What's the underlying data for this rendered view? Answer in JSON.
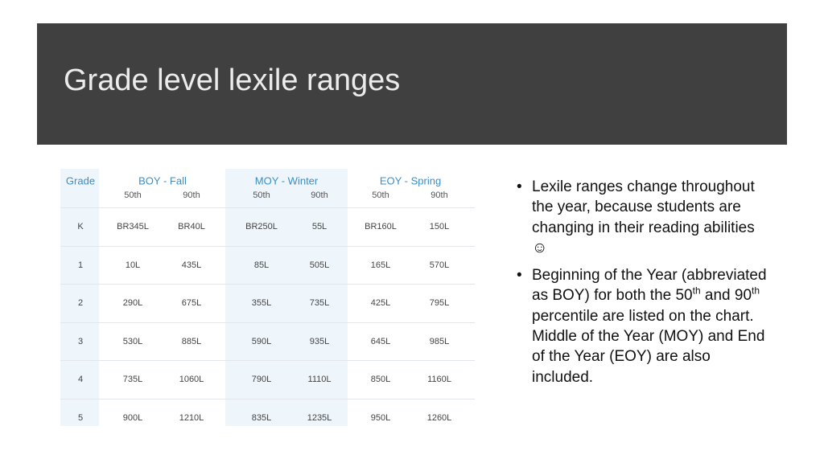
{
  "slide": {
    "title": "Grade level lexile ranges"
  },
  "table": {
    "header": [
      "Grade",
      "BOY - Fall",
      "MOY - Winter",
      "EOY - Spring"
    ],
    "subheader": [
      "50th",
      "90th",
      "50th",
      "90th",
      "50th",
      "90th"
    ],
    "rows": [
      [
        "K",
        "BR345L",
        "BR40L",
        "BR250L",
        "55L",
        "BR160L",
        "150L"
      ],
      [
        "1",
        "10L",
        "435L",
        "85L",
        "505L",
        "165L",
        "570L"
      ],
      [
        "2",
        "290L",
        "675L",
        "355L",
        "735L",
        "425L",
        "795L"
      ],
      [
        "3",
        "530L",
        "885L",
        "590L",
        "935L",
        "645L",
        "985L"
      ],
      [
        "4",
        "735L",
        "1060L",
        "790L",
        "1110L",
        "850L",
        "1160L"
      ],
      [
        "5",
        "900L",
        "1210L",
        "835L",
        "1235L",
        "950L",
        "1260L"
      ]
    ]
  },
  "bullets": {
    "first": "Lexile ranges change throughout the year, because students are changing in their reading abilities ☺",
    "second": [
      "Beginning of the Year (abbreviated as BOY) for both the 50",
      "th",
      " and 90",
      "th",
      " percentile are listed on the chart. Middle of the Year (MOY) and End of the Year (EOY) are also included."
    ]
  }
}
